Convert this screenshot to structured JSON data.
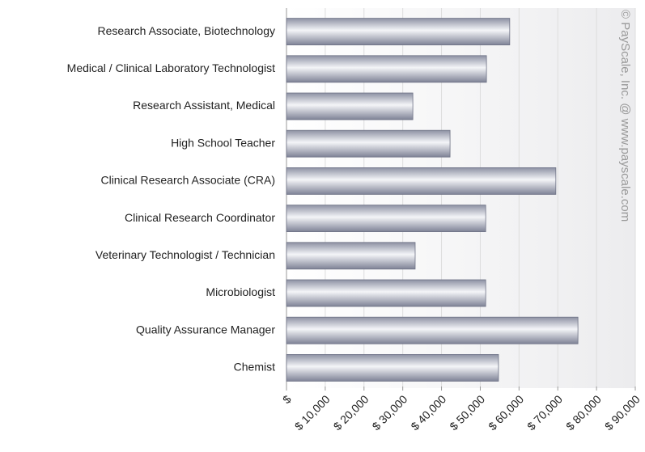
{
  "chart_data": {
    "type": "hbar",
    "categories": [
      "Research Associate, Biotechnology",
      "Medical / Clinical Laboratory Technologist",
      "Research Assistant, Medical",
      "High School Teacher",
      "Clinical Research Associate (CRA)",
      "Clinical Research Coordinator",
      "Veterinary Technologist / Technician",
      "Microbiologist",
      "Quality Assurance Manager",
      "Chemist"
    ],
    "values": [
      57600,
      51600,
      32600,
      42200,
      69500,
      51400,
      33200,
      51400,
      75200,
      54700
    ],
    "color": "#a4a8b8",
    "xlim": [
      0,
      90000
    ],
    "xticks": [
      {
        "value": 0,
        "label": "$"
      },
      {
        "value": 10000,
        "label": "$ 10,000"
      },
      {
        "value": 20000,
        "label": "$ 20,000"
      },
      {
        "value": 30000,
        "label": "$ 30,000"
      },
      {
        "value": 40000,
        "label": "$ 40,000"
      },
      {
        "value": 50000,
        "label": "$ 50,000"
      },
      {
        "value": 60000,
        "label": "$ 60,000"
      },
      {
        "value": 70000,
        "label": "$ 70,000"
      },
      {
        "value": 80000,
        "label": "$ 80,000"
      },
      {
        "value": 90000,
        "label": "$ 90,000"
      }
    ],
    "grid": true,
    "watermark": "© PayScale, Inc. @ www.payscale.com"
  }
}
